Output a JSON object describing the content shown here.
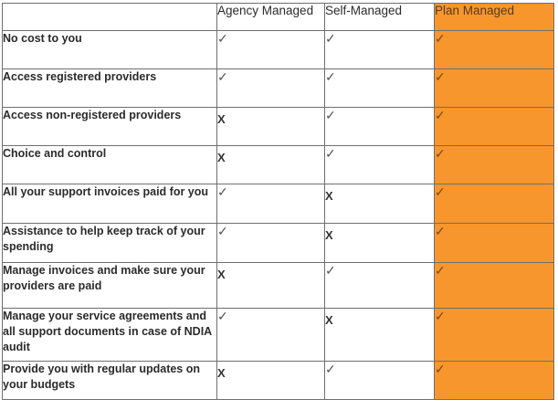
{
  "headers": [
    "",
    "Agency Managed",
    "Self-Managed",
    "Plan Managed"
  ],
  "accent_color": "#f7962d",
  "rows": [
    {
      "label": "No cost to you",
      "agency": "✓",
      "self": "✓",
      "plan": "✓"
    },
    {
      "label": "Access registered providers",
      "agency": "✓",
      "self": "✓",
      "plan": "✓"
    },
    {
      "label": "Access non-registered providers",
      "agency": "X",
      "self": "✓",
      "plan": "✓"
    },
    {
      "label": "Choice and control",
      "agency": "X",
      "self": "✓",
      "plan": "✓"
    },
    {
      "label": "All your support invoices paid for you",
      "agency": "✓",
      "self": "X",
      "plan": "✓"
    },
    {
      "label": "Assistance to help keep track of your spending",
      "agency": "✓",
      "self": "X",
      "plan": "✓"
    },
    {
      "label": "Manage invoices and make sure your providers are paid",
      "agency": "X",
      "self": "✓",
      "plan": "✓"
    },
    {
      "label": "Manage your service agreements and all support documents in case of NDIA audit",
      "agency": "✓",
      "self": "X",
      "plan": "✓"
    },
    {
      "label": "Provide you with regular updates on your budgets",
      "agency": "X",
      "self": "✓",
      "plan": "✓"
    }
  ]
}
